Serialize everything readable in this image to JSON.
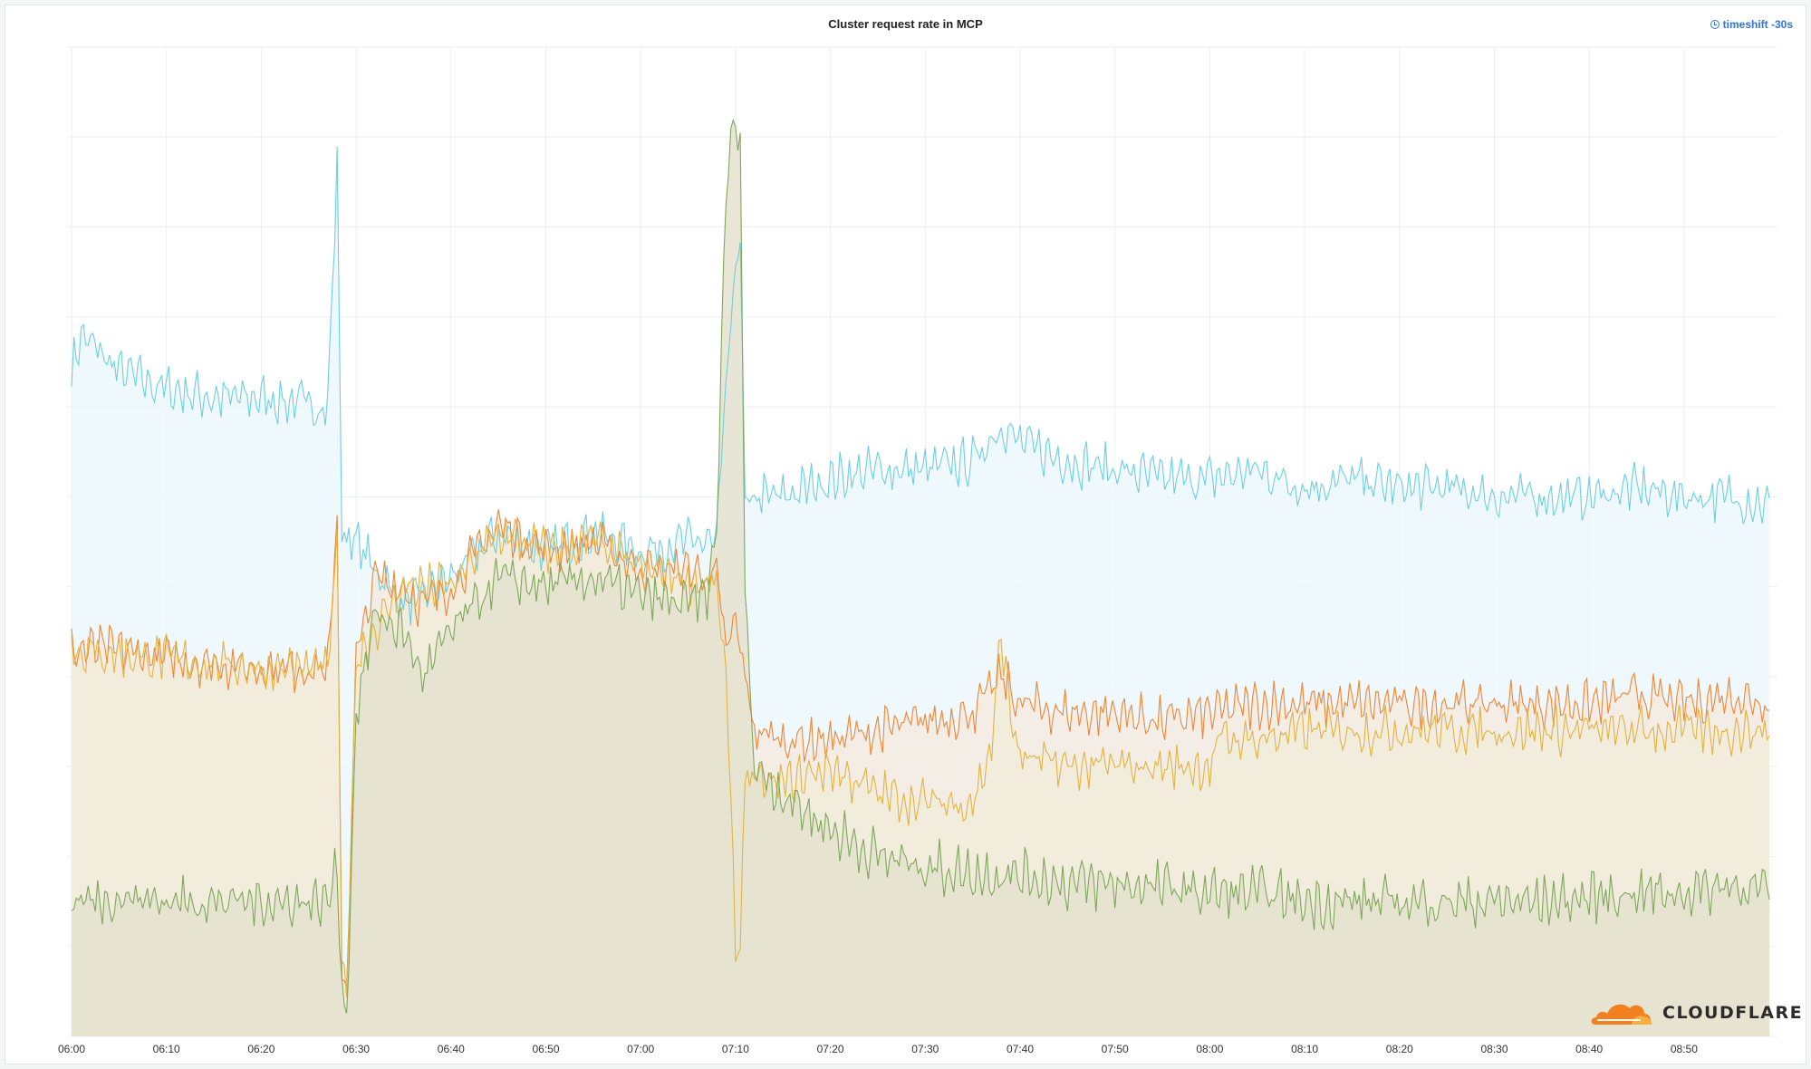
{
  "panel": {
    "title": "Cluster request rate in MCP",
    "timeshift_label": "timeshift -30s",
    "timeshift_icon": "clock-icon"
  },
  "logo": {
    "text": "CLOUDFLARE",
    "icon": "cloud-icon",
    "color": "#f38020"
  },
  "chart_data": {
    "type": "area",
    "title": "Cluster request rate in MCP",
    "xlabel": "",
    "ylabel": "",
    "grid": true,
    "legend": "none",
    "y_axis_labels_visible": false,
    "ylim": [
      0,
      110
    ],
    "xlim": [
      "06:00",
      "08:59"
    ],
    "x_ticks": [
      "06:00",
      "06:10",
      "06:20",
      "06:30",
      "06:40",
      "06:50",
      "07:00",
      "07:10",
      "07:20",
      "07:30",
      "07:40",
      "07:50",
      "08:00",
      "08:10",
      "08:20",
      "08:30",
      "08:40",
      "08:50"
    ],
    "series": [
      {
        "color": "#6ccfe0",
        "fill": "#ecf7fb",
        "points": [
          [
            "06:00",
            74
          ],
          [
            "06:01",
            78
          ],
          [
            "06:05",
            74
          ],
          [
            "06:10",
            72
          ],
          [
            "06:15",
            71
          ],
          [
            "06:20",
            71
          ],
          [
            "06:27",
            70
          ],
          [
            "06:28",
            97
          ],
          [
            "06:28.5",
            56
          ],
          [
            "06:30",
            55
          ],
          [
            "06:32",
            52
          ],
          [
            "06:35",
            48
          ],
          [
            "06:37",
            49
          ],
          [
            "06:40",
            51
          ],
          [
            "06:45",
            56
          ],
          [
            "06:50",
            54
          ],
          [
            "06:55",
            56
          ],
          [
            "07:00",
            54
          ],
          [
            "07:05",
            55
          ],
          [
            "07:08",
            55
          ],
          [
            "07:09",
            72
          ],
          [
            "07:10",
            85
          ],
          [
            "07:10.5",
            90
          ],
          [
            "07:11",
            58
          ],
          [
            "07:12",
            60
          ],
          [
            "07:15",
            60
          ],
          [
            "07:20",
            62
          ],
          [
            "07:25",
            63
          ],
          [
            "07:30",
            63
          ],
          [
            "07:35",
            64
          ],
          [
            "07:38",
            68
          ],
          [
            "07:40",
            66
          ],
          [
            "07:45",
            64
          ],
          [
            "07:50",
            63
          ],
          [
            "07:55",
            62
          ],
          [
            "08:00",
            62
          ],
          [
            "08:05",
            63
          ],
          [
            "08:10",
            61
          ],
          [
            "08:15",
            62
          ],
          [
            "08:20",
            61
          ],
          [
            "08:25",
            61
          ],
          [
            "08:30",
            60
          ],
          [
            "08:35",
            60
          ],
          [
            "08:40",
            60
          ],
          [
            "08:45",
            61
          ],
          [
            "08:50",
            60
          ],
          [
            "08:55",
            60
          ],
          [
            "08:59",
            59
          ]
        ]
      },
      {
        "color": "#ee8637",
        "fill": "#f3ebe0",
        "points": [
          [
            "06:00",
            43
          ],
          [
            "06:05",
            43
          ],
          [
            "06:10",
            42
          ],
          [
            "06:15",
            41.5
          ],
          [
            "06:20",
            41
          ],
          [
            "06:27",
            41
          ],
          [
            "06:28",
            56
          ],
          [
            "06:28.5",
            8
          ],
          [
            "06:29",
            5
          ],
          [
            "06:30",
            42
          ],
          [
            "06:32",
            51
          ],
          [
            "06:35",
            50
          ],
          [
            "06:37",
            48
          ],
          [
            "06:40",
            50
          ],
          [
            "06:45",
            57
          ],
          [
            "06:50",
            54
          ],
          [
            "06:55",
            55
          ],
          [
            "07:00",
            52
          ],
          [
            "07:05",
            52
          ],
          [
            "07:08",
            51
          ],
          [
            "07:09",
            43
          ],
          [
            "07:10",
            46
          ],
          [
            "07:11",
            40
          ],
          [
            "07:12",
            34
          ],
          [
            "07:15",
            33
          ],
          [
            "07:20",
            33
          ],
          [
            "07:25",
            34
          ],
          [
            "07:30",
            35
          ],
          [
            "07:35",
            36
          ],
          [
            "07:38",
            40
          ],
          [
            "07:40",
            37
          ],
          [
            "07:45",
            36
          ],
          [
            "07:50",
            36
          ],
          [
            "07:55",
            35
          ],
          [
            "08:00",
            36
          ],
          [
            "08:05",
            37
          ],
          [
            "08:10",
            37
          ],
          [
            "08:15",
            37
          ],
          [
            "08:20",
            37
          ],
          [
            "08:25",
            37
          ],
          [
            "08:30",
            37
          ],
          [
            "08:35",
            37
          ],
          [
            "08:40",
            37
          ],
          [
            "08:45",
            38
          ],
          [
            "08:50",
            37
          ],
          [
            "08:55",
            38
          ],
          [
            "08:59",
            37
          ]
        ]
      },
      {
        "color": "#e3b341",
        "fill": "#f1ebdb",
        "points": [
          [
            "06:00",
            43
          ],
          [
            "06:10",
            42
          ],
          [
            "06:20",
            41
          ],
          [
            "06:27",
            41
          ],
          [
            "06:28",
            55
          ],
          [
            "06:28.5",
            8
          ],
          [
            "06:29",
            5
          ],
          [
            "06:30",
            42
          ],
          [
            "06:35",
            50
          ],
          [
            "06:40",
            50
          ],
          [
            "06:45",
            56
          ],
          [
            "06:50",
            54
          ],
          [
            "06:55",
            55
          ],
          [
            "07:00",
            52
          ],
          [
            "07:05",
            51
          ],
          [
            "07:08",
            50
          ],
          [
            "07:09",
            40
          ],
          [
            "07:10",
            10
          ],
          [
            "07:10.5",
            10
          ],
          [
            "07:11",
            30
          ],
          [
            "07:12",
            28
          ],
          [
            "07:15",
            28
          ],
          [
            "07:20",
            30
          ],
          [
            "07:25",
            27
          ],
          [
            "07:30",
            26
          ],
          [
            "07:35",
            26
          ],
          [
            "07:37",
            32
          ],
          [
            "07:38",
            45
          ],
          [
            "07:39",
            36
          ],
          [
            "07:40",
            31
          ],
          [
            "07:45",
            30
          ],
          [
            "07:50",
            30
          ],
          [
            "07:55",
            30
          ],
          [
            "08:00",
            30
          ],
          [
            "08:01",
            33
          ],
          [
            "08:05",
            33
          ],
          [
            "08:10",
            34
          ],
          [
            "08:20",
            34
          ],
          [
            "08:30",
            34
          ],
          [
            "08:40",
            34
          ],
          [
            "08:50",
            34
          ],
          [
            "08:59",
            34
          ]
        ]
      },
      {
        "color": "#7da85a",
        "fill": "#e5e2cf",
        "points": [
          [
            "06:00",
            15
          ],
          [
            "06:05",
            15.5
          ],
          [
            "06:10",
            15
          ],
          [
            "06:15",
            15
          ],
          [
            "06:20",
            15
          ],
          [
            "06:27",
            15
          ],
          [
            "06:28",
            19
          ],
          [
            "06:28.5",
            6
          ],
          [
            "06:29",
            2
          ],
          [
            "06:30",
            36
          ],
          [
            "06:32",
            47
          ],
          [
            "06:35",
            45
          ],
          [
            "06:37",
            40
          ],
          [
            "06:40",
            45
          ],
          [
            "06:45",
            51
          ],
          [
            "06:50",
            50
          ],
          [
            "06:55",
            51
          ],
          [
            "07:00",
            49
          ],
          [
            "07:05",
            48
          ],
          [
            "07:07",
            49
          ],
          [
            "07:08",
            56
          ],
          [
            "07:09",
            95
          ],
          [
            "07:10",
            102
          ],
          [
            "07:10.5",
            98
          ],
          [
            "07:11",
            50
          ],
          [
            "07:12",
            30
          ],
          [
            "07:15",
            27
          ],
          [
            "07:20",
            23
          ],
          [
            "07:25",
            20
          ],
          [
            "07:30",
            19
          ],
          [
            "07:35",
            18
          ],
          [
            "07:40",
            18
          ],
          [
            "07:45",
            17
          ],
          [
            "07:50",
            17
          ],
          [
            "07:55",
            16.5
          ],
          [
            "08:00",
            16
          ],
          [
            "08:05",
            16
          ],
          [
            "08:10",
            15
          ],
          [
            "08:15",
            15
          ],
          [
            "08:20",
            15
          ],
          [
            "08:25",
            15
          ],
          [
            "08:30",
            15
          ],
          [
            "08:35",
            15
          ],
          [
            "08:40",
            15.5
          ],
          [
            "08:45",
            16
          ],
          [
            "08:50",
            16
          ],
          [
            "08:55",
            17
          ],
          [
            "08:59",
            16
          ]
        ]
      }
    ]
  }
}
